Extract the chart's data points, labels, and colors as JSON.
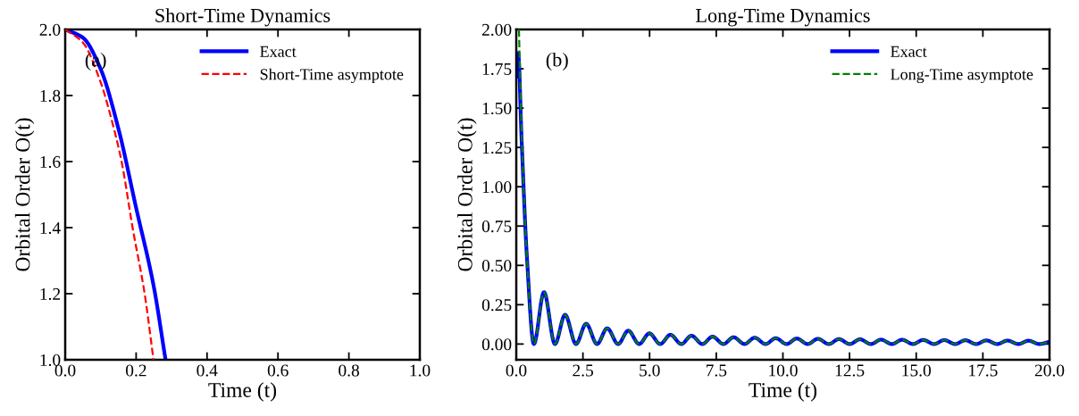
{
  "chart_data": [
    {
      "type": "line",
      "title": "Short-Time Dynamics",
      "xlabel": "Time (t)",
      "ylabel": "Orbital Order O(t)",
      "annotations": [
        "(a)"
      ],
      "xlim": [
        0.0,
        1.0
      ],
      "xticks": [
        {
          "value": 0,
          "label": "0.0"
        },
        0.2,
        0.4,
        0.6,
        0.8,
        {
          "value": 1,
          "label": "1.0"
        }
      ],
      "ylim": [
        1.0,
        2.0
      ],
      "yticks": [
        {
          "value": 1,
          "label": "1.0"
        },
        1.2,
        1.4,
        1.6,
        1.8,
        {
          "value": 2,
          "label": "2.0"
        }
      ],
      "legend": "top right",
      "grid": false,
      "series": [
        {
          "name": "Exact",
          "color": "#0000ff",
          "line_style": "solid",
          "x": [
            0,
            0.05,
            0.1,
            0.15,
            0.2,
            0.25,
            0.283
          ],
          "values": [
            2.0,
            1.975,
            1.88,
            1.7,
            1.46,
            1.22,
            1.0
          ]
        },
        {
          "name": "Short-Time asymptote",
          "color": "#ff0000",
          "line_style": "dashed",
          "x": [
            0,
            0.05,
            0.1,
            0.13,
            0.159,
            0.19,
            0.224,
            0.249
          ],
          "values": [
            2.0,
            1.96,
            1.84,
            1.73,
            1.6,
            1.4,
            1.2,
            1.0
          ]
        }
      ]
    },
    {
      "type": "line",
      "title": "Long-Time Dynamics",
      "xlabel": "Time (t)",
      "ylabel": "Orbital Order O(t)",
      "annotations": [
        "(b)"
      ],
      "xlim": [
        0.0,
        20.0
      ],
      "xticks": [
        {
          "value": 0,
          "label": "0.0"
        },
        2.5,
        {
          "value": 5,
          "label": "5.0"
        },
        7.5,
        {
          "value": 10,
          "label": "10.0"
        },
        12.5,
        {
          "value": 15,
          "label": "15.0"
        },
        17.5,
        {
          "value": 20,
          "label": "20.0"
        }
      ],
      "ylim": [
        -0.1,
        2.0
      ],
      "yticks": [
        {
          "value": 0,
          "label": "0.00"
        },
        0.25,
        {
          "value": 0.5,
          "label": "0.50"
        },
        0.75,
        {
          "value": 1,
          "label": "1.00"
        },
        1.25,
        {
          "value": 1.5,
          "label": "1.50"
        },
        1.75,
        {
          "value": 2,
          "label": "2.00"
        }
      ],
      "legend": "top right",
      "grid": false,
      "series": [
        {
          "name": "Exact",
          "color": "#0000ff",
          "line_style": "solid",
          "x": [
            0,
            0.07,
            0.2,
            0.4,
            0.66,
            1.04,
            1.45,
            1.83,
            2.24,
            2.62,
            3.03,
            3.41,
            3.82,
            4.2,
            4.61,
            4.99,
            5.4,
            5.78,
            6.19,
            6.57,
            6.98,
            7.36,
            7.77,
            8.15,
            8.56,
            8.94,
            9.35,
            9.73,
            10.14,
            10.52,
            10.93,
            11.31,
            11.72,
            12.1,
            12.51,
            12.89,
            13.3,
            13.68,
            14.09,
            14.47,
            14.88,
            15.26,
            15.67,
            16.05,
            16.46,
            16.84,
            17.25,
            17.63,
            18.04,
            18.42,
            18.83,
            19.21,
            19.62,
            20.0
          ],
          "values": [
            1.7,
            1.85,
            1.3,
            0.55,
            0.0,
            0.33,
            0.0,
            0.186,
            0.0,
            0.129,
            0.0,
            0.1,
            0.0,
            0.085,
            0.0,
            0.068,
            0.0,
            0.059,
            0.0,
            0.053,
            0.0,
            0.047,
            0.0,
            0.043,
            0.0,
            0.04,
            0.0,
            0.037,
            0.0,
            0.035,
            0.0,
            0.033,
            0.0,
            0.031,
            0.0,
            0.03,
            0.0,
            0.028,
            0.0,
            0.027,
            0.0,
            0.026,
            0.0,
            0.025,
            0.0,
            0.024,
            0.0,
            0.023,
            0.0,
            0.022,
            0.0,
            0.021,
            0.0,
            0.015
          ]
        },
        {
          "name": "Long-Time asymptote",
          "color": "#008000",
          "line_style": "dashed",
          "x": [
            0.1,
            0.2,
            0.4,
            0.66,
            1.04,
            1.45,
            1.83,
            2.24,
            2.62,
            3.03,
            3.41,
            3.82,
            4.2,
            4.61,
            4.99,
            5.4,
            5.78,
            6.19,
            6.57,
            6.98,
            7.36,
            7.77,
            8.15,
            8.56,
            8.94,
            9.35,
            9.73,
            10.14,
            10.52,
            10.93,
            11.31,
            11.72,
            12.1,
            12.51,
            12.89,
            13.3,
            13.68,
            14.09,
            14.47,
            14.88,
            15.26,
            15.67,
            16.05,
            16.46,
            16.84,
            17.25,
            17.63,
            18.04,
            18.42,
            18.83,
            19.21,
            19.62,
            20.0
          ],
          "values": [
            2.0,
            1.35,
            0.55,
            0.0,
            0.33,
            0.0,
            0.186,
            0.0,
            0.129,
            0.0,
            0.1,
            0.0,
            0.085,
            0.0,
            0.068,
            0.0,
            0.059,
            0.0,
            0.053,
            0.0,
            0.047,
            0.0,
            0.043,
            0.0,
            0.04,
            0.0,
            0.037,
            0.0,
            0.035,
            0.0,
            0.033,
            0.0,
            0.031,
            0.0,
            0.03,
            0.0,
            0.028,
            0.0,
            0.027,
            0.0,
            0.026,
            0.0,
            0.025,
            0.0,
            0.024,
            0.0,
            0.023,
            0.0,
            0.022,
            0.0,
            0.021,
            0.0,
            0.015
          ]
        }
      ]
    }
  ]
}
